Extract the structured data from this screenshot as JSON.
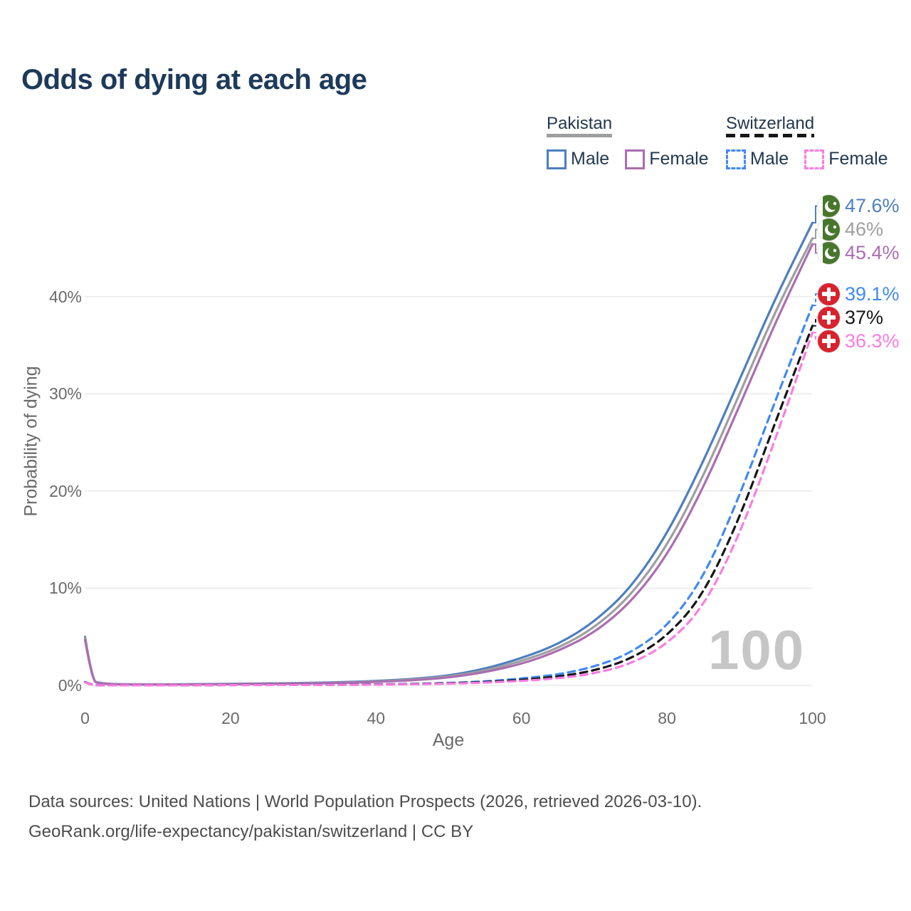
{
  "title": "Odds of dying at each age",
  "legend": {
    "groups": [
      {
        "country": "Pakistan",
        "line_style": "solid",
        "underline_color": "#9e9e9e",
        "items": [
          {
            "label": "Male",
            "color": "#4d7ebf"
          },
          {
            "label": "Female",
            "color": "#ab6db1"
          }
        ]
      },
      {
        "country": "Switzerland",
        "line_style": "dashed",
        "underline_color": "#161616",
        "items": [
          {
            "label": "Male",
            "color": "#4189f4"
          },
          {
            "label": "Female",
            "color": "#fc7ce0"
          }
        ]
      }
    ]
  },
  "watermark": "100",
  "footer": {
    "line1": "Data sources: United Nations | World Population Prospects (2026, retrieved 2026-03-10).",
    "line2": "GeoRank.org/life-expectancy/pakistan/switzerland | CC BY"
  },
  "chart_data": {
    "type": "line",
    "title": "Odds of dying at each age",
    "xlabel": "Age",
    "ylabel": "Probability of dying",
    "xlim": [
      0,
      100
    ],
    "ylim_percent": [
      0,
      48
    ],
    "grid": "horizontal",
    "legend_position": "top-right",
    "x_ticks": [
      0,
      20,
      40,
      60,
      80,
      100
    ],
    "x_tick_labels": [
      "0",
      "20",
      "40",
      "60",
      "80",
      "100"
    ],
    "y_ticks_percent": [
      0,
      10,
      20,
      30,
      40
    ],
    "y_tick_labels": [
      "0%",
      "10%",
      "20%",
      "30%",
      "40%"
    ],
    "x": [
      0,
      1,
      2,
      3,
      4,
      5,
      10,
      15,
      20,
      25,
      30,
      35,
      40,
      45,
      50,
      55,
      60,
      65,
      70,
      75,
      80,
      85,
      90,
      95,
      100
    ],
    "series": [
      {
        "name": "Pakistan Male",
        "key": "pakistan-male",
        "flag": "pakistan",
        "color": "#4d7ebf",
        "dash": "solid",
        "end_label": "47.6%",
        "values": [
          5.0,
          0.45,
          0.25,
          0.18,
          0.14,
          0.12,
          0.1,
          0.12,
          0.16,
          0.2,
          0.25,
          0.32,
          0.45,
          0.65,
          1.0,
          1.7,
          2.8,
          4.2,
          6.5,
          10.0,
          15.5,
          23.0,
          31.5,
          40.0,
          47.6
        ]
      },
      {
        "name": "Pakistan Both sexes",
        "key": "pakistan-average",
        "flag": "pakistan",
        "color": "#9e9e9e",
        "dash": "solid",
        "end_label": "46%",
        "values": [
          4.85,
          0.42,
          0.23,
          0.17,
          0.13,
          0.11,
          0.09,
          0.11,
          0.14,
          0.18,
          0.22,
          0.28,
          0.4,
          0.58,
          0.9,
          1.5,
          2.5,
          3.8,
          5.9,
          9.2,
          14.3,
          21.5,
          30.0,
          38.7,
          46.0
        ]
      },
      {
        "name": "Pakistan Female",
        "key": "pakistan-female",
        "flag": "pakistan",
        "color": "#ab6db1",
        "dash": "solid",
        "end_label": "45.4%",
        "values": [
          4.7,
          0.4,
          0.22,
          0.16,
          0.12,
          0.1,
          0.08,
          0.1,
          0.12,
          0.15,
          0.19,
          0.25,
          0.35,
          0.52,
          0.8,
          1.35,
          2.2,
          3.5,
          5.4,
          8.5,
          13.3,
          20.3,
          28.8,
          37.5,
          45.4
        ]
      },
      {
        "name": "Switzerland Male",
        "key": "switzerland-male",
        "flag": "switzerland",
        "color": "#4189f4",
        "dash": "dashed",
        "end_label": "39.1%",
        "values": [
          0.35,
          0.03,
          0.02,
          0.015,
          0.012,
          0.01,
          0.01,
          0.02,
          0.05,
          0.06,
          0.07,
          0.08,
          0.1,
          0.15,
          0.25,
          0.4,
          0.7,
          1.1,
          1.9,
          3.3,
          6.0,
          11.0,
          19.5,
          29.5,
          39.1
        ]
      },
      {
        "name": "Switzerland Both sexes",
        "key": "switzerland-average",
        "flag": "switzerland",
        "color": "#161616",
        "dash": "dashed",
        "end_label": "37%",
        "values": [
          0.32,
          0.028,
          0.018,
          0.013,
          0.011,
          0.009,
          0.009,
          0.017,
          0.04,
          0.05,
          0.055,
          0.065,
          0.085,
          0.13,
          0.21,
          0.34,
          0.55,
          0.9,
          1.5,
          2.7,
          5.0,
          9.3,
          17.2,
          27.3,
          37.0
        ]
      },
      {
        "name": "Switzerland Female",
        "key": "switzerland-female",
        "flag": "switzerland",
        "color": "#fc7ce0",
        "dash": "dashed",
        "end_label": "36.3%",
        "values": [
          0.3,
          0.025,
          0.016,
          0.012,
          0.01,
          0.008,
          0.008,
          0.014,
          0.03,
          0.04,
          0.045,
          0.055,
          0.07,
          0.11,
          0.18,
          0.28,
          0.45,
          0.72,
          1.2,
          2.2,
          4.2,
          8.0,
          15.5,
          25.5,
          36.3
        ]
      }
    ]
  }
}
